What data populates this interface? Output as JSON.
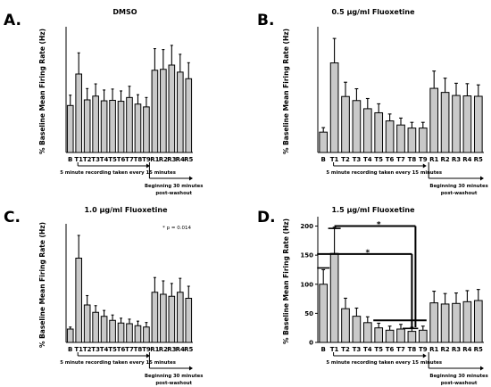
{
  "chart_data": [
    {
      "panel": "A.",
      "title": "DMSO",
      "type": "bar",
      "ylabel": "% Baseline Mean Firing Rate (Hz)",
      "ylim": [
        0,
        260
      ],
      "yticks": [],
      "categories": [
        "B",
        "T1",
        "T2",
        "T3",
        "T4",
        "T5",
        "T6",
        "T7",
        "T8",
        "T9",
        "R1",
        "R2",
        "R3",
        "R4",
        "R5"
      ],
      "values": [
        100,
        167,
        112,
        120,
        110,
        111,
        109,
        117,
        103,
        97,
        175,
        177,
        186,
        171,
        157
      ],
      "errors": [
        22,
        45,
        24,
        26,
        23,
        24,
        22,
        24,
        20,
        20,
        46,
        42,
        42,
        38,
        34
      ],
      "recording_note": "5 minute recording taken every 15 minutes",
      "washout_note": "Beginning 30 minutes post-washout"
    },
    {
      "panel": "B.",
      "title": "0.5 µg/ml Fluoxetine",
      "type": "bar",
      "ylabel": "% Baseline Mean Firing Rate (Hz)",
      "ylim": [
        0,
        600
      ],
      "yticks": [],
      "categories": [
        "B",
        "T1",
        "T2",
        "T3",
        "T4",
        "T5",
        "T6",
        "T7",
        "T8",
        "T9",
        "R1",
        "R2",
        "R3",
        "R4",
        "R5"
      ],
      "values": [
        100,
        440,
        275,
        255,
        215,
        195,
        155,
        135,
        120,
        120,
        315,
        295,
        280,
        278,
        276
      ],
      "errors": [
        22,
        120,
        70,
        58,
        50,
        44,
        34,
        34,
        28,
        28,
        85,
        70,
        60,
        60,
        56
      ],
      "recording_note": "5 minute recording taken every 15 minutes",
      "washout_note": "Beginning 30 minutes post-washout"
    },
    {
      "panel": "C.",
      "title": "1.0 µg/ml Fluoxetine",
      "type": "bar",
      "ylabel": "% Baseline Mean Firing Rate (Hz)",
      "ylim": [
        0,
        860
      ],
      "yticks": [],
      "categories": [
        "B",
        "T1",
        "T2",
        "T3",
        "T4",
        "T5",
        "T6",
        "T7",
        "T8",
        "T9",
        "R1",
        "R2",
        "R3",
        "R4",
        "R5"
      ],
      "values": [
        100,
        630,
        280,
        225,
        195,
        165,
        145,
        140,
        125,
        115,
        375,
        360,
        345,
        375,
        330
      ],
      "errors": [
        15,
        170,
        70,
        50,
        44,
        40,
        36,
        34,
        34,
        34,
        110,
        100,
        96,
        104,
        90
      ],
      "annotation": "* p = 0.014",
      "recording_note": "5 minute recording taken every 15 minutes",
      "washout_note": "Beginning 30 minutes post-washout"
    },
    {
      "panel": "D.",
      "title": "1.5 µg/ml Fluoxetine",
      "type": "bar",
      "ylabel": "% Baseline Mean Firing Rate (Hz)",
      "ylim": [
        0,
        210
      ],
      "yticks": [
        0,
        50,
        100,
        150,
        200
      ],
      "categories": [
        "B",
        "T1",
        "T2",
        "T3",
        "T4",
        "T5",
        "T6",
        "T7",
        "T8",
        "T9",
        "R1",
        "R2",
        "R3",
        "R4",
        "R5"
      ],
      "values": [
        100,
        153,
        58,
        45,
        34,
        25,
        21,
        23,
        19,
        21,
        68,
        66,
        67,
        70,
        72
      ],
      "errors": [
        25,
        45,
        18,
        14,
        10,
        8,
        7,
        8,
        7,
        7,
        20,
        18,
        18,
        19,
        19
      ],
      "significance_markers": [
        "*",
        "*"
      ],
      "recording_note": "5 minute recording taken every 15 minutes",
      "washout_note": "Beginning 30 minutes post-washout"
    }
  ]
}
